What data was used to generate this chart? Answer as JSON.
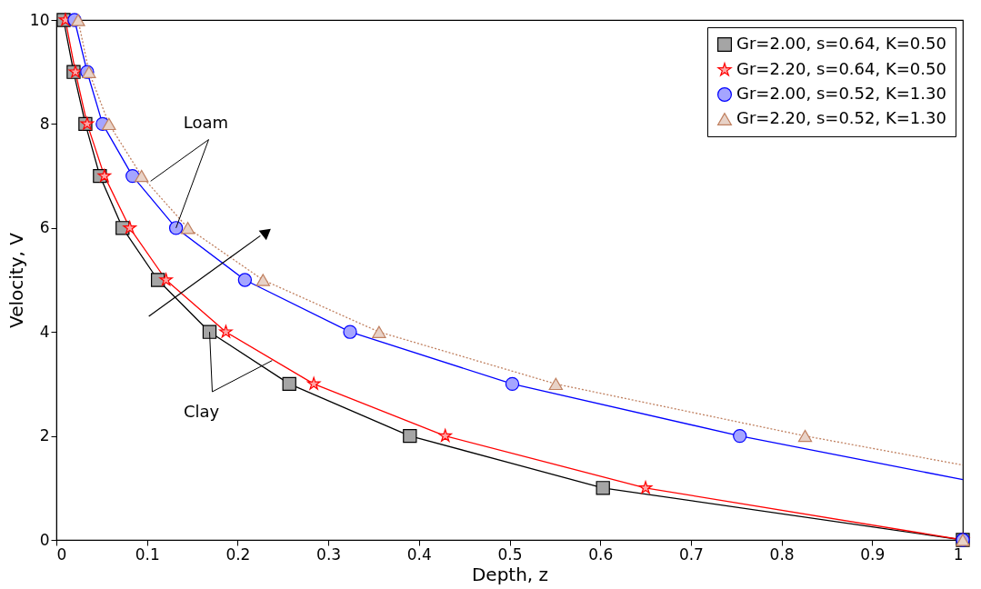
{
  "chart_data": {
    "type": "line",
    "xlabel": "Depth, z",
    "ylabel": "Velocity, V",
    "xlim": [
      0,
      1
    ],
    "xticks": [
      0,
      0.1,
      0.2,
      0.3,
      0.4,
      0.5,
      0.6,
      0.7,
      0.8,
      0.9,
      1
    ],
    "ylim": [
      0,
      10
    ],
    "yticks": [
      0,
      2,
      4,
      6,
      8,
      10
    ],
    "grid": false,
    "legend": "top right",
    "annotations": [
      {
        "text": "Loam",
        "x": 0.132,
        "y": 6
      },
      {
        "text": "Clay",
        "x": 0.169,
        "y": 4
      }
    ],
    "series": [
      {
        "name": "Gr=2.00, s=0.64, K=0.50",
        "color": "#000000",
        "marker": "square",
        "line_style": "solid",
        "x": [
          0.008,
          0.019,
          0.032,
          0.048,
          0.073,
          0.112,
          0.169,
          0.257,
          0.39,
          0.603,
          1
        ],
        "values": [
          10,
          9,
          8,
          7,
          6,
          5,
          4,
          3,
          2,
          1,
          0
        ]
      },
      {
        "name": "Gr=2.20, s=0.64, K=0.50",
        "color": "#ff0000",
        "marker": "star",
        "line_style": "solid",
        "x": [
          0.01,
          0.021,
          0.034,
          0.053,
          0.081,
          0.121,
          0.187,
          0.284,
          0.429,
          0.65,
          1
        ],
        "values": [
          10,
          9,
          8,
          7,
          6,
          5,
          4,
          3,
          2,
          1,
          0
        ]
      },
      {
        "name": "Gr=2.00, s=0.52, K=1.30",
        "color": "#0000ff",
        "marker": "circle",
        "line_style": "solid",
        "x": [
          0.02,
          0.034,
          0.051,
          0.084,
          0.132,
          0.208,
          0.324,
          0.503,
          0.754
        ],
        "values": [
          10,
          9,
          8,
          7,
          6,
          5,
          4,
          3,
          2
        ]
      },
      {
        "name": "Gr=2.20, s=0.52, K=1.30",
        "color": "#c08060",
        "marker": "triangle",
        "line_style": "dotted",
        "x": [
          0.024,
          0.036,
          0.058,
          0.094,
          0.145,
          0.228,
          0.356,
          0.551,
          0.826
        ],
        "values": [
          10,
          9,
          8,
          7,
          6,
          5,
          4,
          3,
          2
        ]
      },
      {
        "type": "line",
        "color": "#0000ff",
        "marker": "none",
        "line_style": "solid",
        "x": [
          0.754,
          1
        ],
        "values": [
          2,
          1.16
        ]
      },
      {
        "type": "line",
        "color": "#c08060",
        "marker": "none",
        "line_style": "dotted",
        "x": [
          0.826,
          1
        ],
        "values": [
          2,
          1.44
        ]
      },
      {
        "type": "scatter",
        "color": "#0000ff",
        "marker": "circle",
        "x": [
          1
        ],
        "values": [
          0
        ]
      },
      {
        "type": "scatter",
        "color": "#c08060",
        "marker": "triangle",
        "x": [
          1
        ],
        "values": [
          0
        ]
      }
    ]
  }
}
